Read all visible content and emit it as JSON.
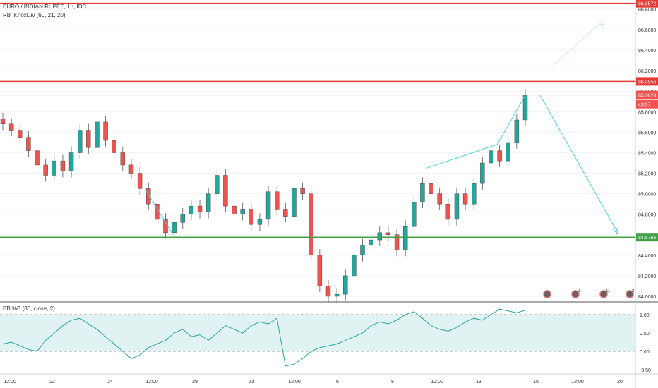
{
  "header": {
    "symbol_title": "EURO / INDIAN RUPEE, 1h, IDC",
    "indicator_label": "RB_KnoxDiv (60, 21, 20)"
  },
  "sub_pane": {
    "title": "BB %B (80, close, 2)",
    "ticks": [
      "1.00",
      "0.50",
      "0.00",
      "-0.50"
    ]
  },
  "price_axis": {
    "ticks": [
      "86.8000",
      "86.6000",
      "86.4000",
      "86.2000",
      "86.0000",
      "85.8000",
      "85.6000",
      "85.4000",
      "85.2000",
      "85.0000",
      "84.8000",
      "84.6000",
      "84.4000",
      "84.2000",
      "84.0000"
    ],
    "badges": [
      {
        "text": "86.8572",
        "color": "#e53935"
      },
      {
        "text": "86.0956",
        "color": "#e53935"
      },
      {
        "text": "85.9629",
        "color": "#ef5350"
      },
      {
        "text": "49:07",
        "color": "#ef5350"
      },
      {
        "text": "84.5765",
        "color": "#43a047"
      }
    ]
  },
  "time_axis": {
    "ticks": [
      "12:00",
      "22",
      "24",
      "12:00",
      "29",
      "Jul",
      "12:00",
      "6",
      "8",
      "12:00",
      "13",
      "15",
      "12:00",
      "20"
    ]
  },
  "event_markers": [
    {
      "label": ""
    },
    {
      "label": "2"
    },
    {
      "label": "11"
    },
    {
      "label": "2"
    }
  ],
  "colors": {
    "up_candle": "#26a69a",
    "down_candle": "#ef5350",
    "resistance_line": "#e53935",
    "support_line": "#43a047",
    "indicator_line": "#26a69a",
    "band_fill": "#e0f2f1"
  },
  "chart_data": {
    "type": "line",
    "series": [
      {
        "values": [
          85.68,
          85.62,
          85.55,
          85.42,
          85.28,
          85.18,
          85.32,
          85.22,
          85.4,
          85.62,
          85.45,
          85.7,
          85.52,
          85.4,
          85.28,
          85.2,
          85.05,
          84.9,
          84.75,
          84.62,
          84.72,
          84.8,
          84.88,
          84.82,
          85.0,
          85.18,
          84.88,
          84.8,
          84.85,
          84.7,
          84.75,
          85.02,
          84.85,
          84.78,
          85.05,
          85.0,
          84.4,
          84.1,
          84.0,
          84.02,
          84.2,
          84.4,
          84.5,
          84.55,
          84.62,
          84.6,
          84.45,
          84.68,
          84.92,
          85.1,
          85.0,
          84.9,
          84.75,
          85.0,
          84.9,
          85.1,
          85.3,
          85.42,
          85.32,
          85.5,
          85.72,
          85.96
        ]
      },
      {
        "name": "BB %B (80, close, 2)",
        "values": [
          0.2,
          0.25,
          0.15,
          0.05,
          0.0,
          0.3,
          0.5,
          0.7,
          0.85,
          0.9,
          0.75,
          0.6,
          0.4,
          0.2,
          0.0,
          -0.2,
          -0.1,
          0.1,
          0.2,
          0.3,
          0.5,
          0.6,
          0.4,
          0.45,
          0.3,
          0.5,
          0.7,
          0.6,
          0.5,
          0.7,
          0.8,
          0.75,
          0.9,
          -0.4,
          -0.35,
          -0.2,
          0.0,
          0.1,
          0.15,
          0.2,
          0.3,
          0.4,
          0.5,
          0.7,
          0.8,
          0.75,
          0.85,
          1.0,
          1.08,
          0.9,
          0.7,
          0.6,
          0.55,
          0.65,
          0.8,
          0.9,
          0.85,
          1.0,
          1.15,
          1.1,
          1.05,
          1.12
        ]
      }
    ],
    "ylim": [
      83.98,
      86.9
    ],
    "indicator_ylim": [
      -0.55,
      1.25
    ],
    "horizontal_levels": [
      86.8572,
      86.0956,
      85.9629,
      84.5765
    ]
  }
}
